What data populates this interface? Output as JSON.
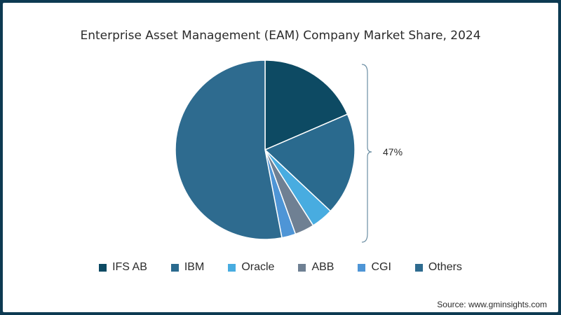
{
  "chart_data": {
    "type": "pie",
    "title": "Enterprise Asset Management (EAM) Company Market Share, 2024",
    "series": [
      {
        "name": "IFS AB",
        "value": 18.5,
        "color": "#0d4a63"
      },
      {
        "name": "IBM",
        "value": 18.5,
        "color": "#2a6a8e"
      },
      {
        "name": "Oracle",
        "value": 4.0,
        "color": "#48ace0"
      },
      {
        "name": "ABB",
        "value": 3.5,
        "color": "#6f8093"
      },
      {
        "name": "CGI",
        "value": 2.5,
        "color": "#4e95d6"
      },
      {
        "name": "Others",
        "value": 53.0,
        "color": "#2e6b8f"
      }
    ],
    "annotation": "47%",
    "legend_position": "bottom"
  },
  "source": "Source: www.gminsights.com"
}
